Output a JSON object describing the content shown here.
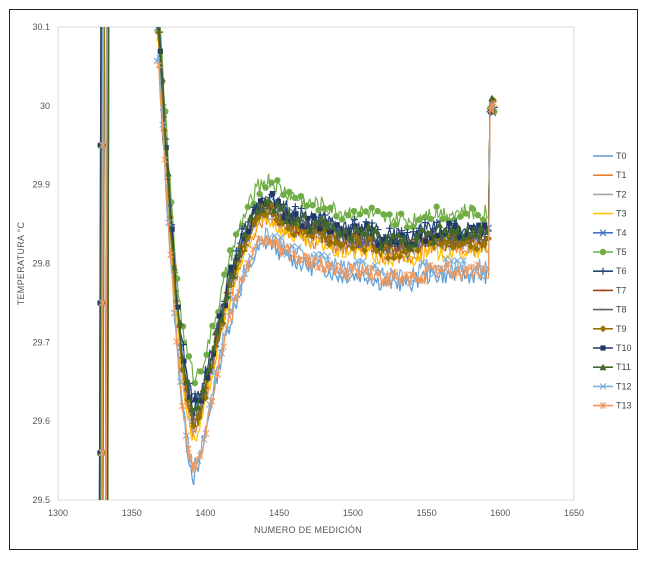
{
  "chart_data": {
    "type": "line",
    "title": "",
    "xlabel": "NUMERO DE MEDICIÓN",
    "ylabel": "TEMPERATURA °C",
    "xlim": [
      1300,
      1650
    ],
    "ylim": [
      29.5,
      30.1
    ],
    "xticks": [
      "1300",
      "1350",
      "1400",
      "1450",
      "1500",
      "1550",
      "1600",
      "1650"
    ],
    "yticks": [
      "29.5",
      "29.6",
      "29.7",
      "29.8",
      "29.9",
      "30",
      "30.1"
    ],
    "grid": false,
    "legend": "right",
    "curve_shape": {
      "x": [
        1368,
        1372,
        1376,
        1380,
        1384,
        1388,
        1392,
        1396,
        1400,
        1405,
        1410,
        1415,
        1420,
        1425,
        1430,
        1435,
        1440,
        1445,
        1450,
        1460,
        1470,
        1480,
        1490,
        1500,
        1510,
        1520,
        1530,
        1540,
        1550,
        1560,
        1570,
        1580,
        1590
      ],
      "y": [
        30.1,
        29.98,
        29.86,
        29.76,
        29.68,
        29.63,
        29.6,
        29.61,
        29.64,
        29.68,
        29.72,
        29.76,
        29.79,
        29.82,
        29.84,
        29.86,
        29.87,
        29.87,
        29.86,
        29.85,
        29.84,
        29.84,
        29.83,
        29.83,
        29.83,
        29.82,
        29.82,
        29.82,
        29.83,
        29.83,
        29.83,
        29.83,
        29.83
      ]
    },
    "left_spike_x": [
      1328,
      1333
    ],
    "step_x": [
      1592,
      1596
    ],
    "step_y": [
      29.83,
      30.0
    ],
    "series": [
      {
        "name": "T0",
        "color": "#5b9bd5",
        "marker": "none",
        "offset": -0.045
      },
      {
        "name": "T1",
        "color": "#ed7d31",
        "marker": "none",
        "offset": -0.01
      },
      {
        "name": "T2",
        "color": "#a5a5a5",
        "marker": "none",
        "offset": -0.005
      },
      {
        "name": "T3",
        "color": "#ffc000",
        "marker": "none",
        "offset": -0.015
      },
      {
        "name": "T4",
        "color": "#4472c4",
        "marker": "x",
        "offset": 0.005
      },
      {
        "name": "T5",
        "color": "#70ad47",
        "marker": "circle",
        "offset": 0.035
      },
      {
        "name": "T6",
        "color": "#264478",
        "marker": "plus",
        "offset": 0.015
      },
      {
        "name": "T7",
        "color": "#9e480e",
        "marker": "dash",
        "offset": 0.0
      },
      {
        "name": "T8",
        "color": "#636363",
        "marker": "dash",
        "offset": 0.002
      },
      {
        "name": "T9",
        "color": "#997300",
        "marker": "diamond",
        "offset": -0.003
      },
      {
        "name": "T10",
        "color": "#203864",
        "marker": "square",
        "offset": 0.01
      },
      {
        "name": "T11",
        "color": "#43682b",
        "marker": "triangle",
        "offset": 0.008
      },
      {
        "name": "T12",
        "color": "#7cafdd",
        "marker": "x",
        "offset": -0.035
      },
      {
        "name": "T13",
        "color": "#f1975a",
        "marker": "star",
        "offset": -0.04
      }
    ]
  }
}
